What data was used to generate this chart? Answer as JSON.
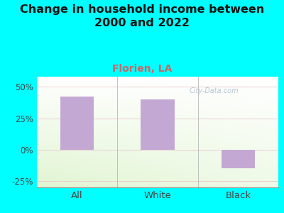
{
  "title": "Change in household income between\n2000 and 2022",
  "subtitle": "Florien, LA",
  "categories": [
    "All",
    "White",
    "Black"
  ],
  "values": [
    42,
    40,
    -15
  ],
  "bar_color": "#c4a8d4",
  "title_fontsize": 11.5,
  "subtitle_fontsize": 10,
  "subtitle_color": "#cc6666",
  "tick_label_color": "#444444",
  "ylim": [
    -30,
    58
  ],
  "yticks": [
    -25,
    0,
    25,
    50
  ],
  "ytick_labels": [
    "-25%",
    "0%",
    "25%",
    "50%"
  ],
  "background_color": "#00ffff",
  "gridline_color_25": "#e8d0d0",
  "gridline_color_0": "#e8d0d0",
  "bar_width": 0.42,
  "watermark_text": "City-Data.com",
  "watermark_color": "#aabbcc"
}
